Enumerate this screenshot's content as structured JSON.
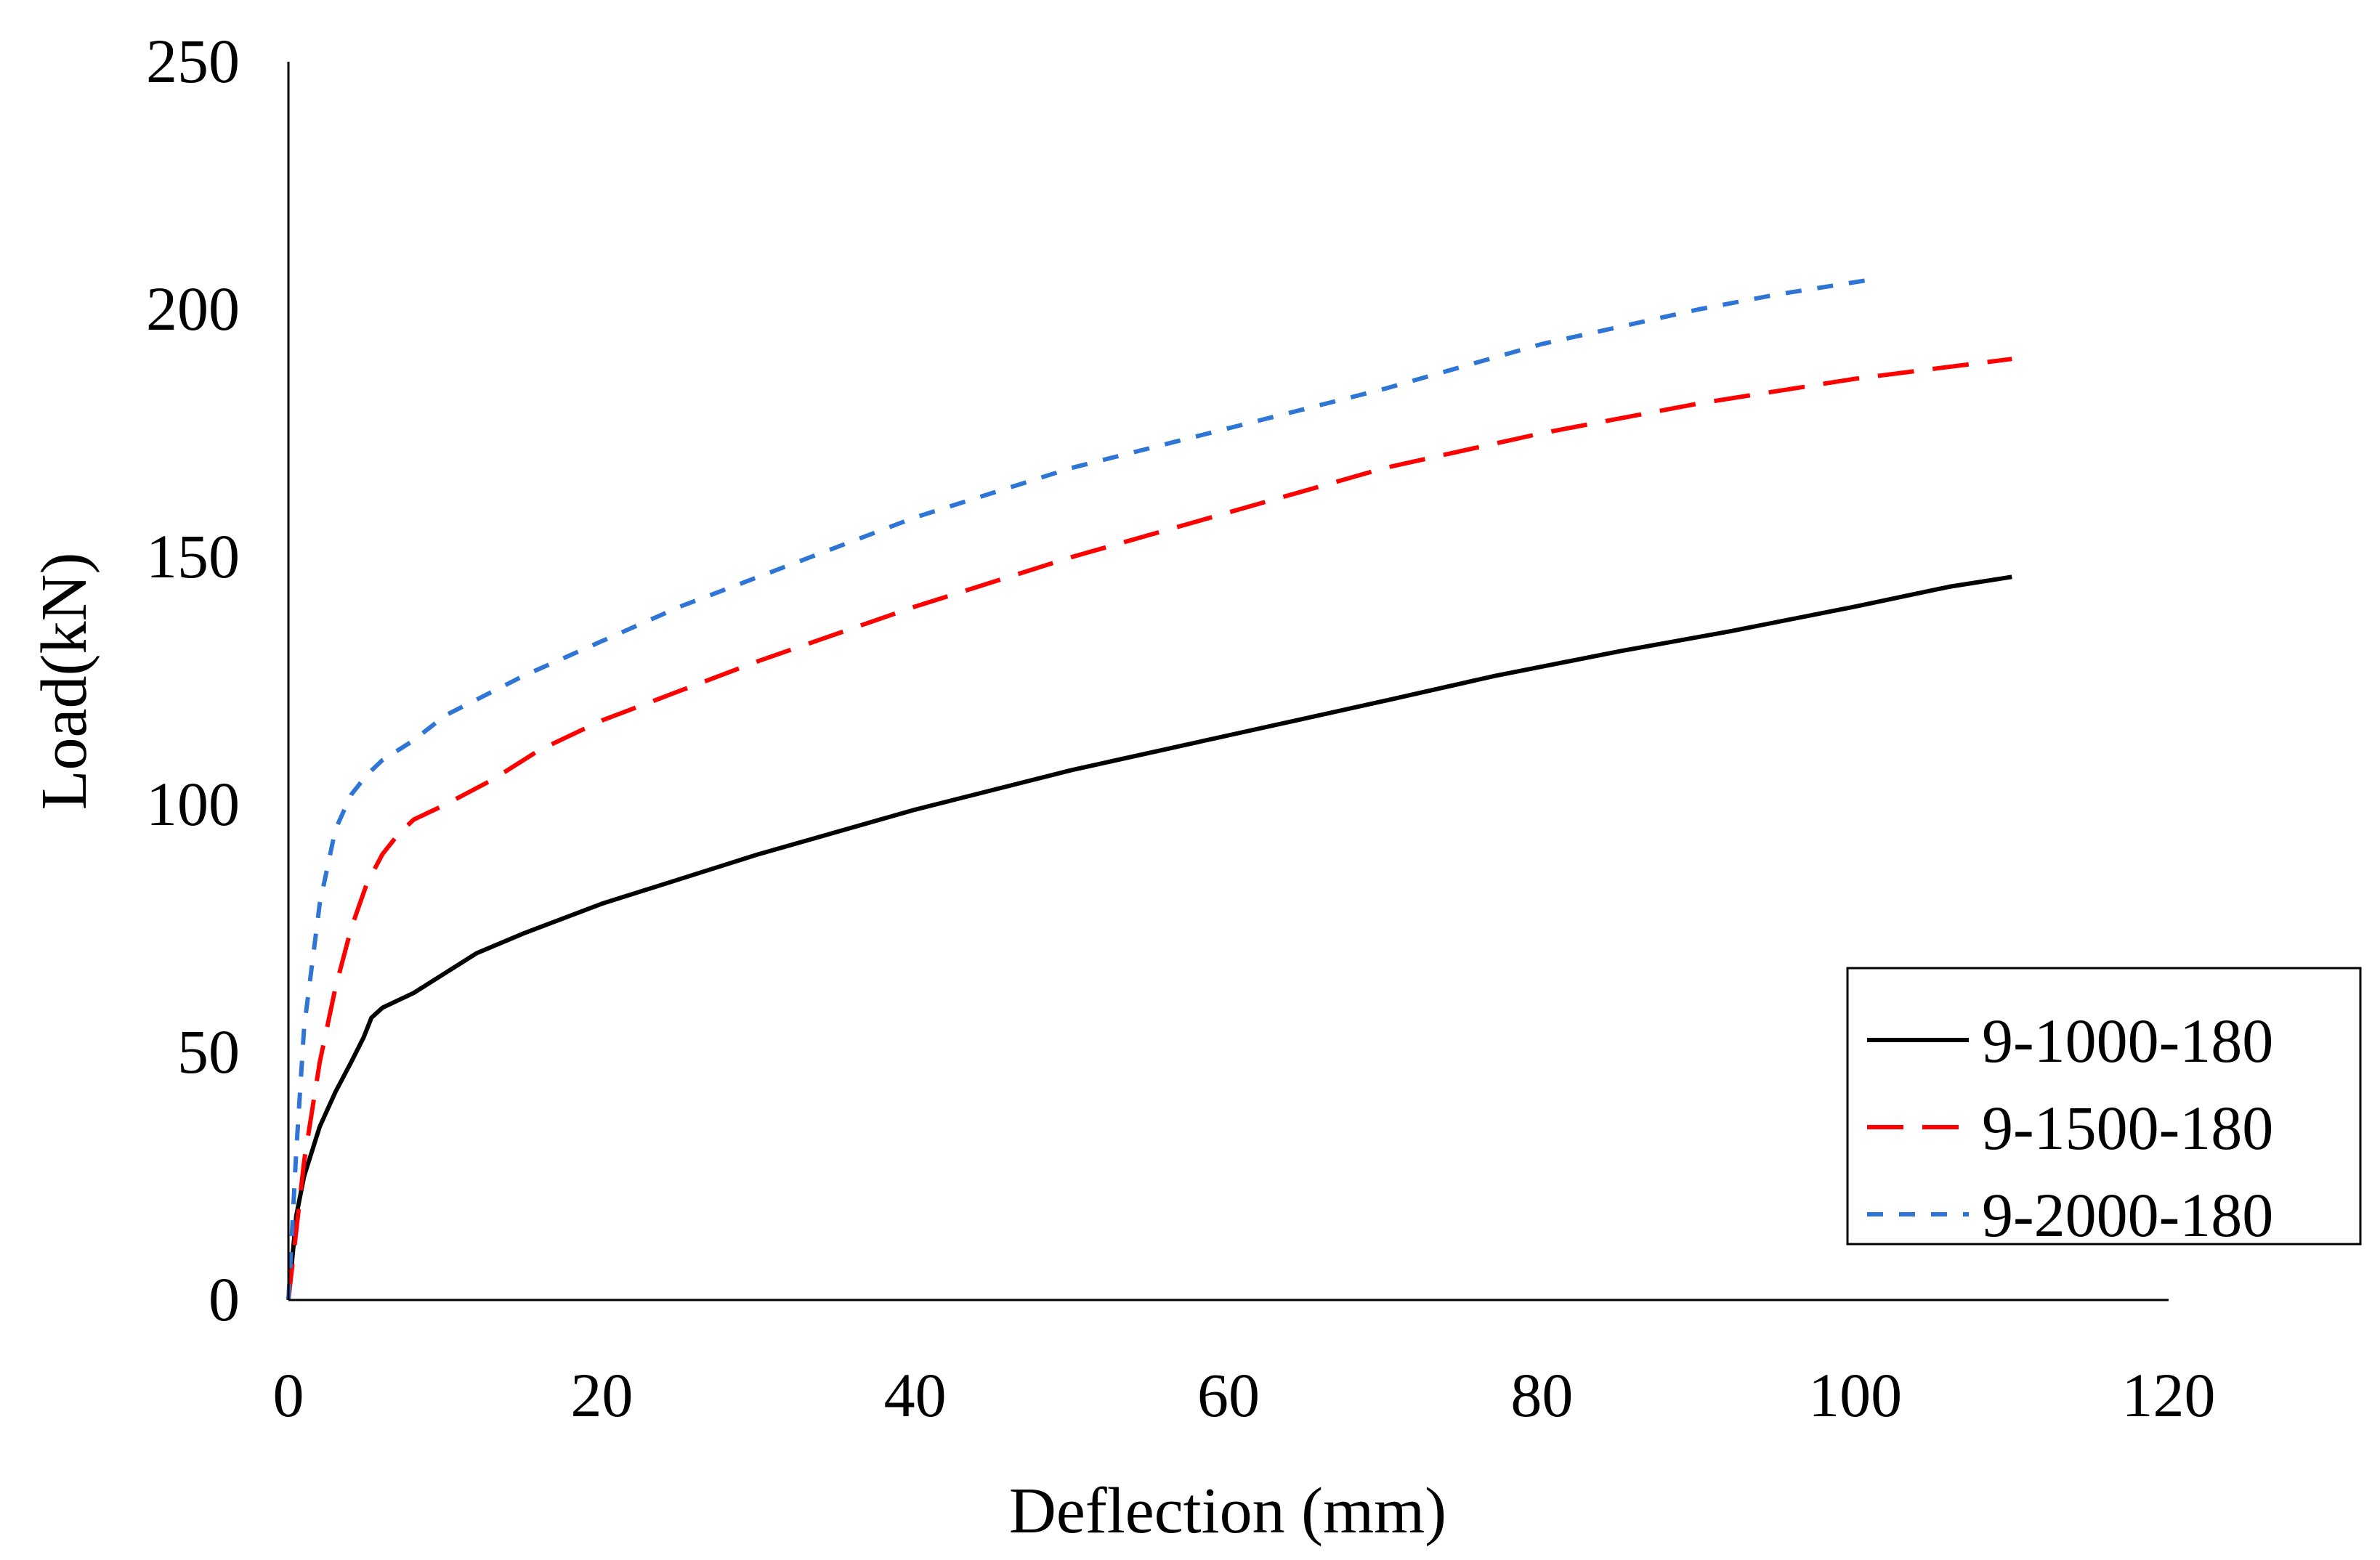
{
  "chart_data": {
    "type": "line",
    "title": "",
    "xlabel": "Deflection (mm)",
    "ylabel": "Load(kN)",
    "xlim": [
      0,
      120
    ],
    "ylim": [
      0,
      250
    ],
    "xticks": [
      0,
      20,
      40,
      60,
      80,
      100,
      120
    ],
    "yticks": [
      0,
      50,
      100,
      150,
      200,
      250
    ],
    "grid": false,
    "legend_position": "bottom-right",
    "series": [
      {
        "name": "9-1000-180",
        "color": "#000000",
        "style": "solid",
        "x": [
          0,
          0.5,
          1,
          2,
          3,
          4,
          4.8,
          5.3,
          6,
          8,
          10,
          12,
          15,
          20,
          25,
          30,
          40,
          50,
          60,
          70,
          77,
          85,
          92,
          100,
          106,
          110
        ],
        "y": [
          0,
          17,
          25,
          35,
          42,
          48,
          53,
          57,
          59,
          62,
          66,
          70,
          74,
          80,
          85,
          90,
          99,
          107,
          114,
          121,
          126,
          131,
          135,
          140,
          144,
          146
        ]
      },
      {
        "name": "9-1500-180",
        "color": "#ff0000",
        "style": "long-dash",
        "x": [
          0,
          1,
          2,
          3,
          4,
          5,
          6,
          7,
          8,
          10,
          13,
          16,
          20,
          25,
          30,
          40,
          50,
          60,
          70,
          80,
          90,
          100,
          110
        ],
        "y": [
          0,
          28,
          48,
          63,
          75,
          84,
          90,
          94,
          97,
          100,
          105,
          111,
          117,
          123,
          129,
          140,
          150,
          159,
          168,
          175,
          181,
          186,
          190
        ]
      },
      {
        "name": "9-2000-180",
        "color": "#2e75d6",
        "style": "short-dash",
        "x": [
          0,
          0.5,
          1,
          2,
          3,
          4,
          5,
          6,
          8,
          10,
          15,
          20,
          25,
          30,
          40,
          50,
          60,
          70,
          80,
          90,
          95,
          101
        ],
        "y": [
          0,
          30,
          55,
          80,
          95,
          102,
          106,
          109,
          113,
          118,
          126,
          133,
          140,
          146,
          158,
          168,
          176,
          184,
          193,
          200,
          203,
          206
        ]
      }
    ]
  }
}
